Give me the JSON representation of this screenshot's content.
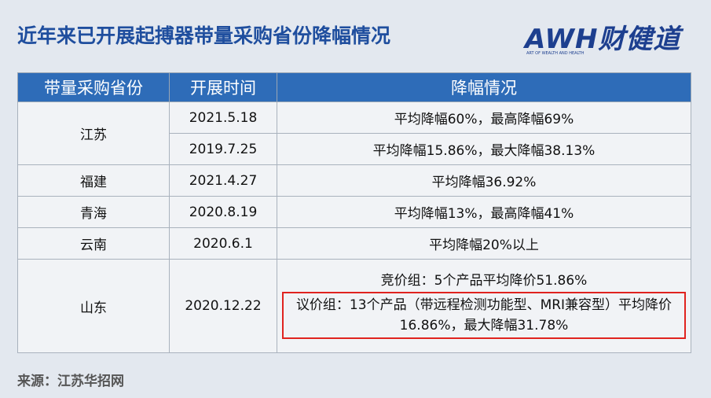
{
  "header": {
    "title": "近年来已开展起搏器带量采购省份降幅情况",
    "logo": "AWH财健道",
    "logo_sub": "ART OF WEALTH AND HEALTH"
  },
  "table": {
    "columns": [
      "带量采购省份",
      "开展时间",
      "降幅情况"
    ],
    "rows": [
      {
        "province": "江苏",
        "entries": [
          {
            "date": "2021.5.18",
            "reduction": [
              "平均降幅60%，最高降幅69%"
            ]
          },
          {
            "date": "2019.7.25",
            "reduction": [
              "平均降幅15.86%，最大降幅38.13%"
            ]
          }
        ]
      },
      {
        "province": "福建",
        "entries": [
          {
            "date": "2021.4.27",
            "reduction": [
              "平均降幅36.92%"
            ]
          }
        ]
      },
      {
        "province": "青海",
        "entries": [
          {
            "date": "2020.8.19",
            "reduction": [
              "平均降幅13%，最高降幅41%"
            ]
          }
        ]
      },
      {
        "province": "云南",
        "entries": [
          {
            "date": "2020.6.1",
            "reduction": [
              "平均降幅20%以上"
            ]
          }
        ]
      },
      {
        "province": "山东",
        "entries": [
          {
            "date": "2020.12.22",
            "reduction": [
              "竞价组：5个产品平均降价51.86%",
              "议价组：13个产品（带远程检测功能型、MRI兼容型）平均降价16.86%，最大降幅31.78%"
            ]
          }
        ]
      }
    ]
  },
  "footer": {
    "source": "来源：江苏华招网"
  }
}
